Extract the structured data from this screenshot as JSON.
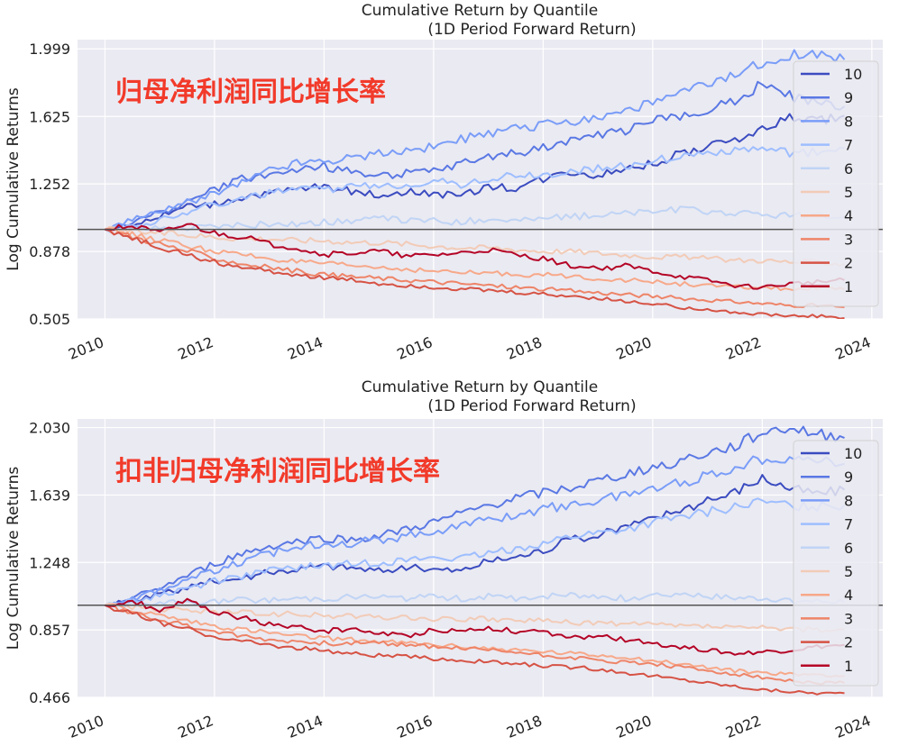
{
  "colors": {
    "plot_bg": "#EAEAF2",
    "grid": "#FFFFFF",
    "annotation": "#F23A2A",
    "baseline": "#555555",
    "legend_bg": "#EAEAF2",
    "legend_border": "#D2D2D2"
  },
  "chart_data": [
    {
      "type": "line",
      "title": "Cumulative Return by Quantile",
      "subtitle": "(1D Period Forward Return)",
      "ylabel": "Log Cumulative Returns",
      "xlabel": "",
      "annotation": "归母净利润同比增长率",
      "ylim": [
        0.505,
        2.05
      ],
      "xlim": [
        2009.5,
        2024.2
      ],
      "yticks": [
        0.505,
        0.878,
        1.252,
        1.625,
        1.999
      ],
      "ytick_labels": [
        "0.505",
        "0.878",
        "1.252",
        "1.625",
        "1.999"
      ],
      "xticks": [
        2010,
        2012,
        2014,
        2016,
        2018,
        2020,
        2022,
        2024
      ],
      "xtick_labels": [
        "2010",
        "2012",
        "2014",
        "2016",
        "2018",
        "2020",
        "2022",
        "2024"
      ],
      "baseline": 1.0,
      "legend_position": "right",
      "x": [
        2010.0,
        2010.5,
        2011.0,
        2011.5,
        2012.0,
        2012.5,
        2013.0,
        2013.5,
        2014.0,
        2014.5,
        2015.0,
        2015.5,
        2016.0,
        2016.5,
        2017.0,
        2017.5,
        2018.0,
        2018.5,
        2019.0,
        2019.5,
        2020.0,
        2020.5,
        2021.0,
        2021.5,
        2022.0,
        2022.5,
        2023.0,
        2023.5
      ],
      "series": [
        {
          "name": "10",
          "color": "#3B4CC0",
          "values": [
            1.0,
            1.03,
            1.07,
            1.13,
            1.14,
            1.18,
            1.2,
            1.22,
            1.24,
            1.21,
            1.19,
            1.21,
            1.2,
            1.18,
            1.24,
            1.23,
            1.28,
            1.32,
            1.3,
            1.34,
            1.36,
            1.42,
            1.45,
            1.5,
            1.55,
            1.62,
            1.6,
            1.63
          ]
        },
        {
          "name": "9",
          "color": "#5A78E4",
          "values": [
            1.0,
            1.04,
            1.09,
            1.15,
            1.22,
            1.28,
            1.3,
            1.33,
            1.35,
            1.32,
            1.3,
            1.31,
            1.32,
            1.36,
            1.4,
            1.42,
            1.45,
            1.5,
            1.52,
            1.55,
            1.6,
            1.62,
            1.67,
            1.72,
            1.8,
            1.74,
            1.7,
            1.68
          ]
        },
        {
          "name": "8",
          "color": "#7A9DF8",
          "values": [
            1.0,
            1.05,
            1.1,
            1.15,
            1.2,
            1.26,
            1.33,
            1.37,
            1.38,
            1.4,
            1.42,
            1.44,
            1.46,
            1.5,
            1.52,
            1.56,
            1.58,
            1.6,
            1.62,
            1.66,
            1.7,
            1.75,
            1.8,
            1.85,
            1.92,
            1.97,
            1.96,
            1.94
          ]
        },
        {
          "name": "7",
          "color": "#9EBEFF",
          "values": [
            1.0,
            1.02,
            1.05,
            1.1,
            1.14,
            1.17,
            1.2,
            1.22,
            1.22,
            1.24,
            1.24,
            1.25,
            1.27,
            1.25,
            1.28,
            1.3,
            1.3,
            1.32,
            1.34,
            1.35,
            1.38,
            1.4,
            1.42,
            1.44,
            1.44,
            1.42,
            1.43,
            1.45
          ]
        },
        {
          "name": "6",
          "color": "#C0D4F5",
          "values": [
            1.0,
            1.0,
            1.01,
            1.01,
            1.02,
            1.02,
            1.03,
            1.03,
            1.04,
            1.05,
            1.06,
            1.05,
            1.05,
            1.04,
            1.06,
            1.05,
            1.06,
            1.07,
            1.08,
            1.09,
            1.1,
            1.11,
            1.1,
            1.09,
            1.08,
            1.08,
            1.07,
            1.07
          ]
        },
        {
          "name": "5",
          "color": "#F2CBB7",
          "values": [
            1.0,
            0.99,
            0.98,
            0.97,
            0.96,
            0.95,
            0.95,
            0.94,
            0.94,
            0.93,
            0.93,
            0.92,
            0.91,
            0.9,
            0.9,
            0.89,
            0.88,
            0.88,
            0.87,
            0.86,
            0.85,
            0.85,
            0.84,
            0.83,
            0.83,
            0.82,
            0.82,
            0.81
          ]
        },
        {
          "name": "4",
          "color": "#F7A889",
          "values": [
            1.0,
            0.97,
            0.94,
            0.91,
            0.88,
            0.86,
            0.84,
            0.82,
            0.81,
            0.8,
            0.79,
            0.78,
            0.77,
            0.76,
            0.76,
            0.75,
            0.75,
            0.74,
            0.73,
            0.72,
            0.71,
            0.7,
            0.69,
            0.68,
            0.68,
            0.67,
            0.67,
            0.67
          ]
        },
        {
          "name": "3",
          "color": "#EE8468",
          "values": [
            1.0,
            0.96,
            0.92,
            0.88,
            0.84,
            0.81,
            0.79,
            0.77,
            0.75,
            0.74,
            0.73,
            0.72,
            0.71,
            0.7,
            0.69,
            0.68,
            0.67,
            0.66,
            0.65,
            0.64,
            0.63,
            0.62,
            0.61,
            0.6,
            0.59,
            0.58,
            0.58,
            0.57
          ]
        },
        {
          "name": "2",
          "color": "#D65244",
          "values": [
            1.0,
            0.95,
            0.9,
            0.86,
            0.82,
            0.79,
            0.77,
            0.75,
            0.73,
            0.72,
            0.7,
            0.69,
            0.68,
            0.67,
            0.66,
            0.65,
            0.64,
            0.63,
            0.62,
            0.6,
            0.59,
            0.57,
            0.56,
            0.54,
            0.53,
            0.52,
            0.52,
            0.51
          ]
        },
        {
          "name": "1",
          "color": "#B40426",
          "values": [
            1.0,
            1.02,
            0.98,
            1.03,
            0.98,
            0.96,
            0.92,
            0.9,
            0.86,
            0.87,
            0.88,
            0.85,
            0.86,
            0.87,
            0.89,
            0.86,
            0.84,
            0.8,
            0.78,
            0.8,
            0.77,
            0.74,
            0.72,
            0.69,
            0.68,
            0.7,
            0.71,
            0.72
          ]
        }
      ]
    },
    {
      "type": "line",
      "title": "Cumulative Return by Quantile",
      "subtitle": "(1D Period Forward Return)",
      "ylabel": "Log Cumulative Returns",
      "xlabel": "",
      "annotation": "扣非归母净利润同比增长率",
      "ylim": [
        0.466,
        2.08
      ],
      "xlim": [
        2009.5,
        2024.2
      ],
      "yticks": [
        0.466,
        0.857,
        1.248,
        1.639,
        2.03
      ],
      "ytick_labels": [
        "0.466",
        "0.857",
        "1.248",
        "1.639",
        "2.030"
      ],
      "xticks": [
        2010,
        2012,
        2014,
        2016,
        2018,
        2020,
        2022,
        2024
      ],
      "xtick_labels": [
        "2010",
        "2012",
        "2014",
        "2016",
        "2018",
        "2020",
        "2022",
        "2024"
      ],
      "baseline": 1.0,
      "legend_position": "right",
      "x": [
        2010.0,
        2010.5,
        2011.0,
        2011.5,
        2012.0,
        2012.5,
        2013.0,
        2013.5,
        2014.0,
        2014.5,
        2015.0,
        2015.5,
        2016.0,
        2016.5,
        2017.0,
        2017.5,
        2018.0,
        2018.5,
        2019.0,
        2019.5,
        2020.0,
        2020.5,
        2021.0,
        2021.5,
        2022.0,
        2022.5,
        2023.0,
        2023.5
      ],
      "series": [
        {
          "name": "10",
          "color": "#3B4CC0",
          "values": [
            1.0,
            1.02,
            1.06,
            1.1,
            1.14,
            1.16,
            1.19,
            1.21,
            1.23,
            1.22,
            1.2,
            1.22,
            1.21,
            1.2,
            1.26,
            1.28,
            1.32,
            1.38,
            1.4,
            1.46,
            1.5,
            1.56,
            1.6,
            1.66,
            1.74,
            1.68,
            1.65,
            1.67
          ]
        },
        {
          "name": "9",
          "color": "#5A78E4",
          "values": [
            1.0,
            1.04,
            1.1,
            1.17,
            1.24,
            1.3,
            1.34,
            1.37,
            1.39,
            1.38,
            1.4,
            1.44,
            1.48,
            1.53,
            1.58,
            1.62,
            1.65,
            1.68,
            1.72,
            1.76,
            1.8,
            1.84,
            1.88,
            1.92,
            2.0,
            2.03,
            1.99,
            1.97
          ]
        },
        {
          "name": "8",
          "color": "#7A9DF8",
          "values": [
            1.0,
            1.04,
            1.09,
            1.15,
            1.2,
            1.25,
            1.3,
            1.34,
            1.36,
            1.36,
            1.38,
            1.4,
            1.43,
            1.46,
            1.5,
            1.52,
            1.56,
            1.58,
            1.61,
            1.64,
            1.68,
            1.71,
            1.75,
            1.8,
            1.85,
            1.86,
            1.84,
            1.82
          ]
        },
        {
          "name": "7",
          "color": "#9EBEFF",
          "values": [
            1.0,
            1.02,
            1.06,
            1.1,
            1.14,
            1.17,
            1.2,
            1.22,
            1.23,
            1.24,
            1.25,
            1.26,
            1.28,
            1.27,
            1.3,
            1.33,
            1.36,
            1.4,
            1.42,
            1.44,
            1.48,
            1.51,
            1.54,
            1.57,
            1.6,
            1.58,
            1.57,
            1.58
          ]
        },
        {
          "name": "6",
          "color": "#C0D4F5",
          "values": [
            1.0,
            1.0,
            1.01,
            1.02,
            1.02,
            1.03,
            1.03,
            1.04,
            1.04,
            1.05,
            1.05,
            1.04,
            1.05,
            1.04,
            1.05,
            1.04,
            1.05,
            1.06,
            1.05,
            1.04,
            1.06,
            1.07,
            1.05,
            1.04,
            1.04,
            1.03,
            1.02,
            1.02
          ]
        },
        {
          "name": "5",
          "color": "#F2CBB7",
          "values": [
            1.0,
            0.99,
            0.98,
            0.97,
            0.96,
            0.96,
            0.95,
            0.95,
            0.94,
            0.94,
            0.93,
            0.93,
            0.92,
            0.92,
            0.92,
            0.91,
            0.91,
            0.9,
            0.9,
            0.89,
            0.89,
            0.88,
            0.88,
            0.87,
            0.87,
            0.86,
            0.86,
            0.86
          ]
        },
        {
          "name": "4",
          "color": "#F7A889",
          "values": [
            1.0,
            0.97,
            0.94,
            0.91,
            0.88,
            0.86,
            0.84,
            0.82,
            0.81,
            0.8,
            0.79,
            0.78,
            0.77,
            0.76,
            0.75,
            0.74,
            0.73,
            0.72,
            0.71,
            0.7,
            0.68,
            0.66,
            0.64,
            0.62,
            0.61,
            0.6,
            0.6,
            0.59
          ]
        },
        {
          "name": "3",
          "color": "#EE8468",
          "values": [
            1.0,
            0.96,
            0.92,
            0.88,
            0.85,
            0.82,
            0.8,
            0.79,
            0.78,
            0.78,
            0.78,
            0.77,
            0.76,
            0.75,
            0.74,
            0.73,
            0.71,
            0.7,
            0.68,
            0.67,
            0.66,
            0.64,
            0.62,
            0.6,
            0.58,
            0.56,
            0.55,
            0.55
          ]
        },
        {
          "name": "2",
          "color": "#D65244",
          "values": [
            1.0,
            0.95,
            0.9,
            0.86,
            0.82,
            0.79,
            0.77,
            0.75,
            0.74,
            0.72,
            0.71,
            0.7,
            0.69,
            0.68,
            0.67,
            0.66,
            0.65,
            0.64,
            0.63,
            0.61,
            0.59,
            0.57,
            0.55,
            0.53,
            0.51,
            0.5,
            0.49,
            0.49
          ]
        },
        {
          "name": "1",
          "color": "#B40426",
          "values": [
            1.0,
            1.02,
            0.97,
            1.02,
            0.96,
            0.93,
            0.89,
            0.87,
            0.85,
            0.86,
            0.84,
            0.82,
            0.86,
            0.85,
            0.87,
            0.85,
            0.84,
            0.81,
            0.82,
            0.8,
            0.78,
            0.76,
            0.74,
            0.72,
            0.73,
            0.74,
            0.76,
            0.77
          ]
        }
      ]
    }
  ]
}
